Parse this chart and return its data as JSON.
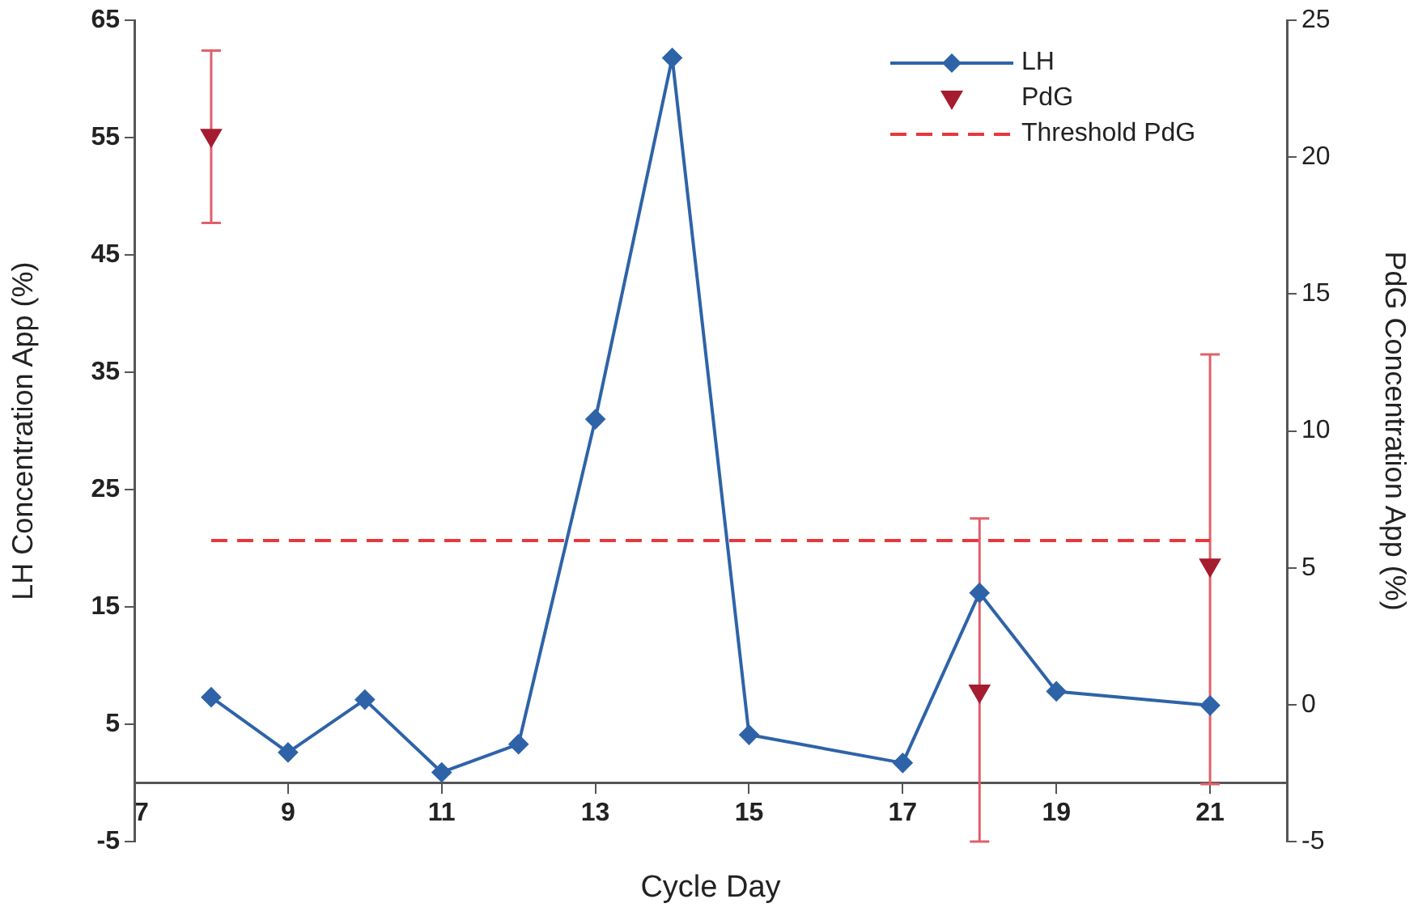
{
  "chart_data": {
    "type": "line",
    "xlabel": "Cycle Day",
    "ylabel": "LH Concentration App (%)",
    "y2label": "PdG Concentration App (%)",
    "xlim": [
      7,
      22
    ],
    "xticks": [
      7,
      9,
      11,
      13,
      15,
      17,
      19,
      21,
      {
        "value": 22,
        "label": null
      }
    ],
    "ylim": [
      -5,
      65
    ],
    "yticks": [
      -5,
      5,
      15,
      25,
      35,
      45,
      55,
      65
    ],
    "y2lim": [
      -5,
      25
    ],
    "y2ticks": [
      -5,
      0,
      5,
      10,
      15,
      20,
      25
    ],
    "grid": false,
    "legend": "top right",
    "series": [
      {
        "name": "LH",
        "color": "#2e63a8",
        "marker": "diamond",
        "x": [
          8,
          9,
          10,
          11,
          12,
          13,
          14,
          15,
          17,
          18,
          19,
          21
        ],
        "values": [
          7.3,
          2.6,
          7.1,
          0.9,
          3.3,
          31,
          61.8,
          4.1,
          1.7,
          16.2,
          7.8,
          6.6
        ]
      },
      {
        "name": "PdG",
        "type": "scatter",
        "axis": "y2",
        "color": "#a51c30",
        "marker": "triangle",
        "x": [
          8,
          18,
          21
        ],
        "values": [
          20.8,
          0.5,
          5.1
        ],
        "errors": [
          [
            17.6,
            23.9
          ],
          [
            -5,
            6.8
          ],
          [
            -2.9,
            12.8
          ]
        ]
      },
      {
        "name": "Threshold PdG",
        "type": "line",
        "axis": "y2",
        "color": "#e8383d",
        "marker": "none",
        "line_style": "dashed",
        "x": [
          8,
          21
        ],
        "values": [
          6,
          6
        ]
      }
    ]
  }
}
